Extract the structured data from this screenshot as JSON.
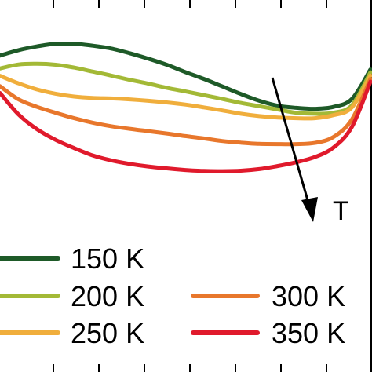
{
  "chart_data": {
    "type": "line",
    "title": "",
    "xlabel": "",
    "ylabel": "",
    "x": [
      0,
      1,
      2,
      3,
      4,
      5,
      6,
      7,
      8,
      9,
      10,
      11,
      12,
      13,
      14,
      15,
      16,
      17,
      18,
      19,
      20
    ],
    "xlim": [
      0,
      20
    ],
    "ylim": [
      0,
      100
    ],
    "series": [
      {
        "name": "150 K",
        "color": "#1e5a28",
        "values": [
          76.4,
          78.7,
          80.3,
          81.4,
          81.4,
          80.6,
          79.4,
          77.4,
          75.1,
          72.5,
          69.4,
          66.5,
          63.3,
          60.1,
          57.2,
          55.1,
          54.2,
          53.8,
          54.6,
          58.0,
          70.5
        ]
      },
      {
        "name": "200 K",
        "color": "#a3b936",
        "values": [
          70.9,
          72.6,
          72.9,
          72.5,
          71.3,
          69.6,
          67.9,
          66.1,
          64.5,
          62.7,
          61.2,
          59.6,
          58.0,
          56.3,
          54.9,
          53.5,
          52.1,
          51.7,
          52.1,
          55.3,
          69.3
        ]
      },
      {
        "name": "250 K",
        "color": "#f0ae3c",
        "values": [
          67.8,
          64.6,
          62.0,
          60.2,
          59.0,
          58.4,
          58.2,
          57.8,
          57.2,
          56.5,
          55.6,
          54.4,
          53.1,
          51.7,
          50.7,
          50.1,
          49.8,
          49.8,
          51.1,
          54.4,
          67.9
        ]
      },
      {
        "name": "300 K",
        "color": "#e8772c",
        "values": [
          63.4,
          57.8,
          54.6,
          52.1,
          49.8,
          47.9,
          46.4,
          45.3,
          44.3,
          43.3,
          42.2,
          41.2,
          40.1,
          39.4,
          38.9,
          38.8,
          38.8,
          39.3,
          41.8,
          49.3,
          66.5
        ]
      },
      {
        "name": "350 K",
        "color": "#e01a2c",
        "values": [
          60.5,
          51.4,
          45.1,
          40.6,
          37.1,
          34.0,
          31.9,
          30.4,
          29.3,
          28.5,
          27.8,
          27.4,
          27.3,
          27.5,
          28.2,
          29.5,
          31.1,
          33.3,
          37.3,
          46.1,
          65.3
        ]
      }
    ],
    "annotation": {
      "text": "T"
    },
    "legend_position": "bottom",
    "grid": false
  }
}
